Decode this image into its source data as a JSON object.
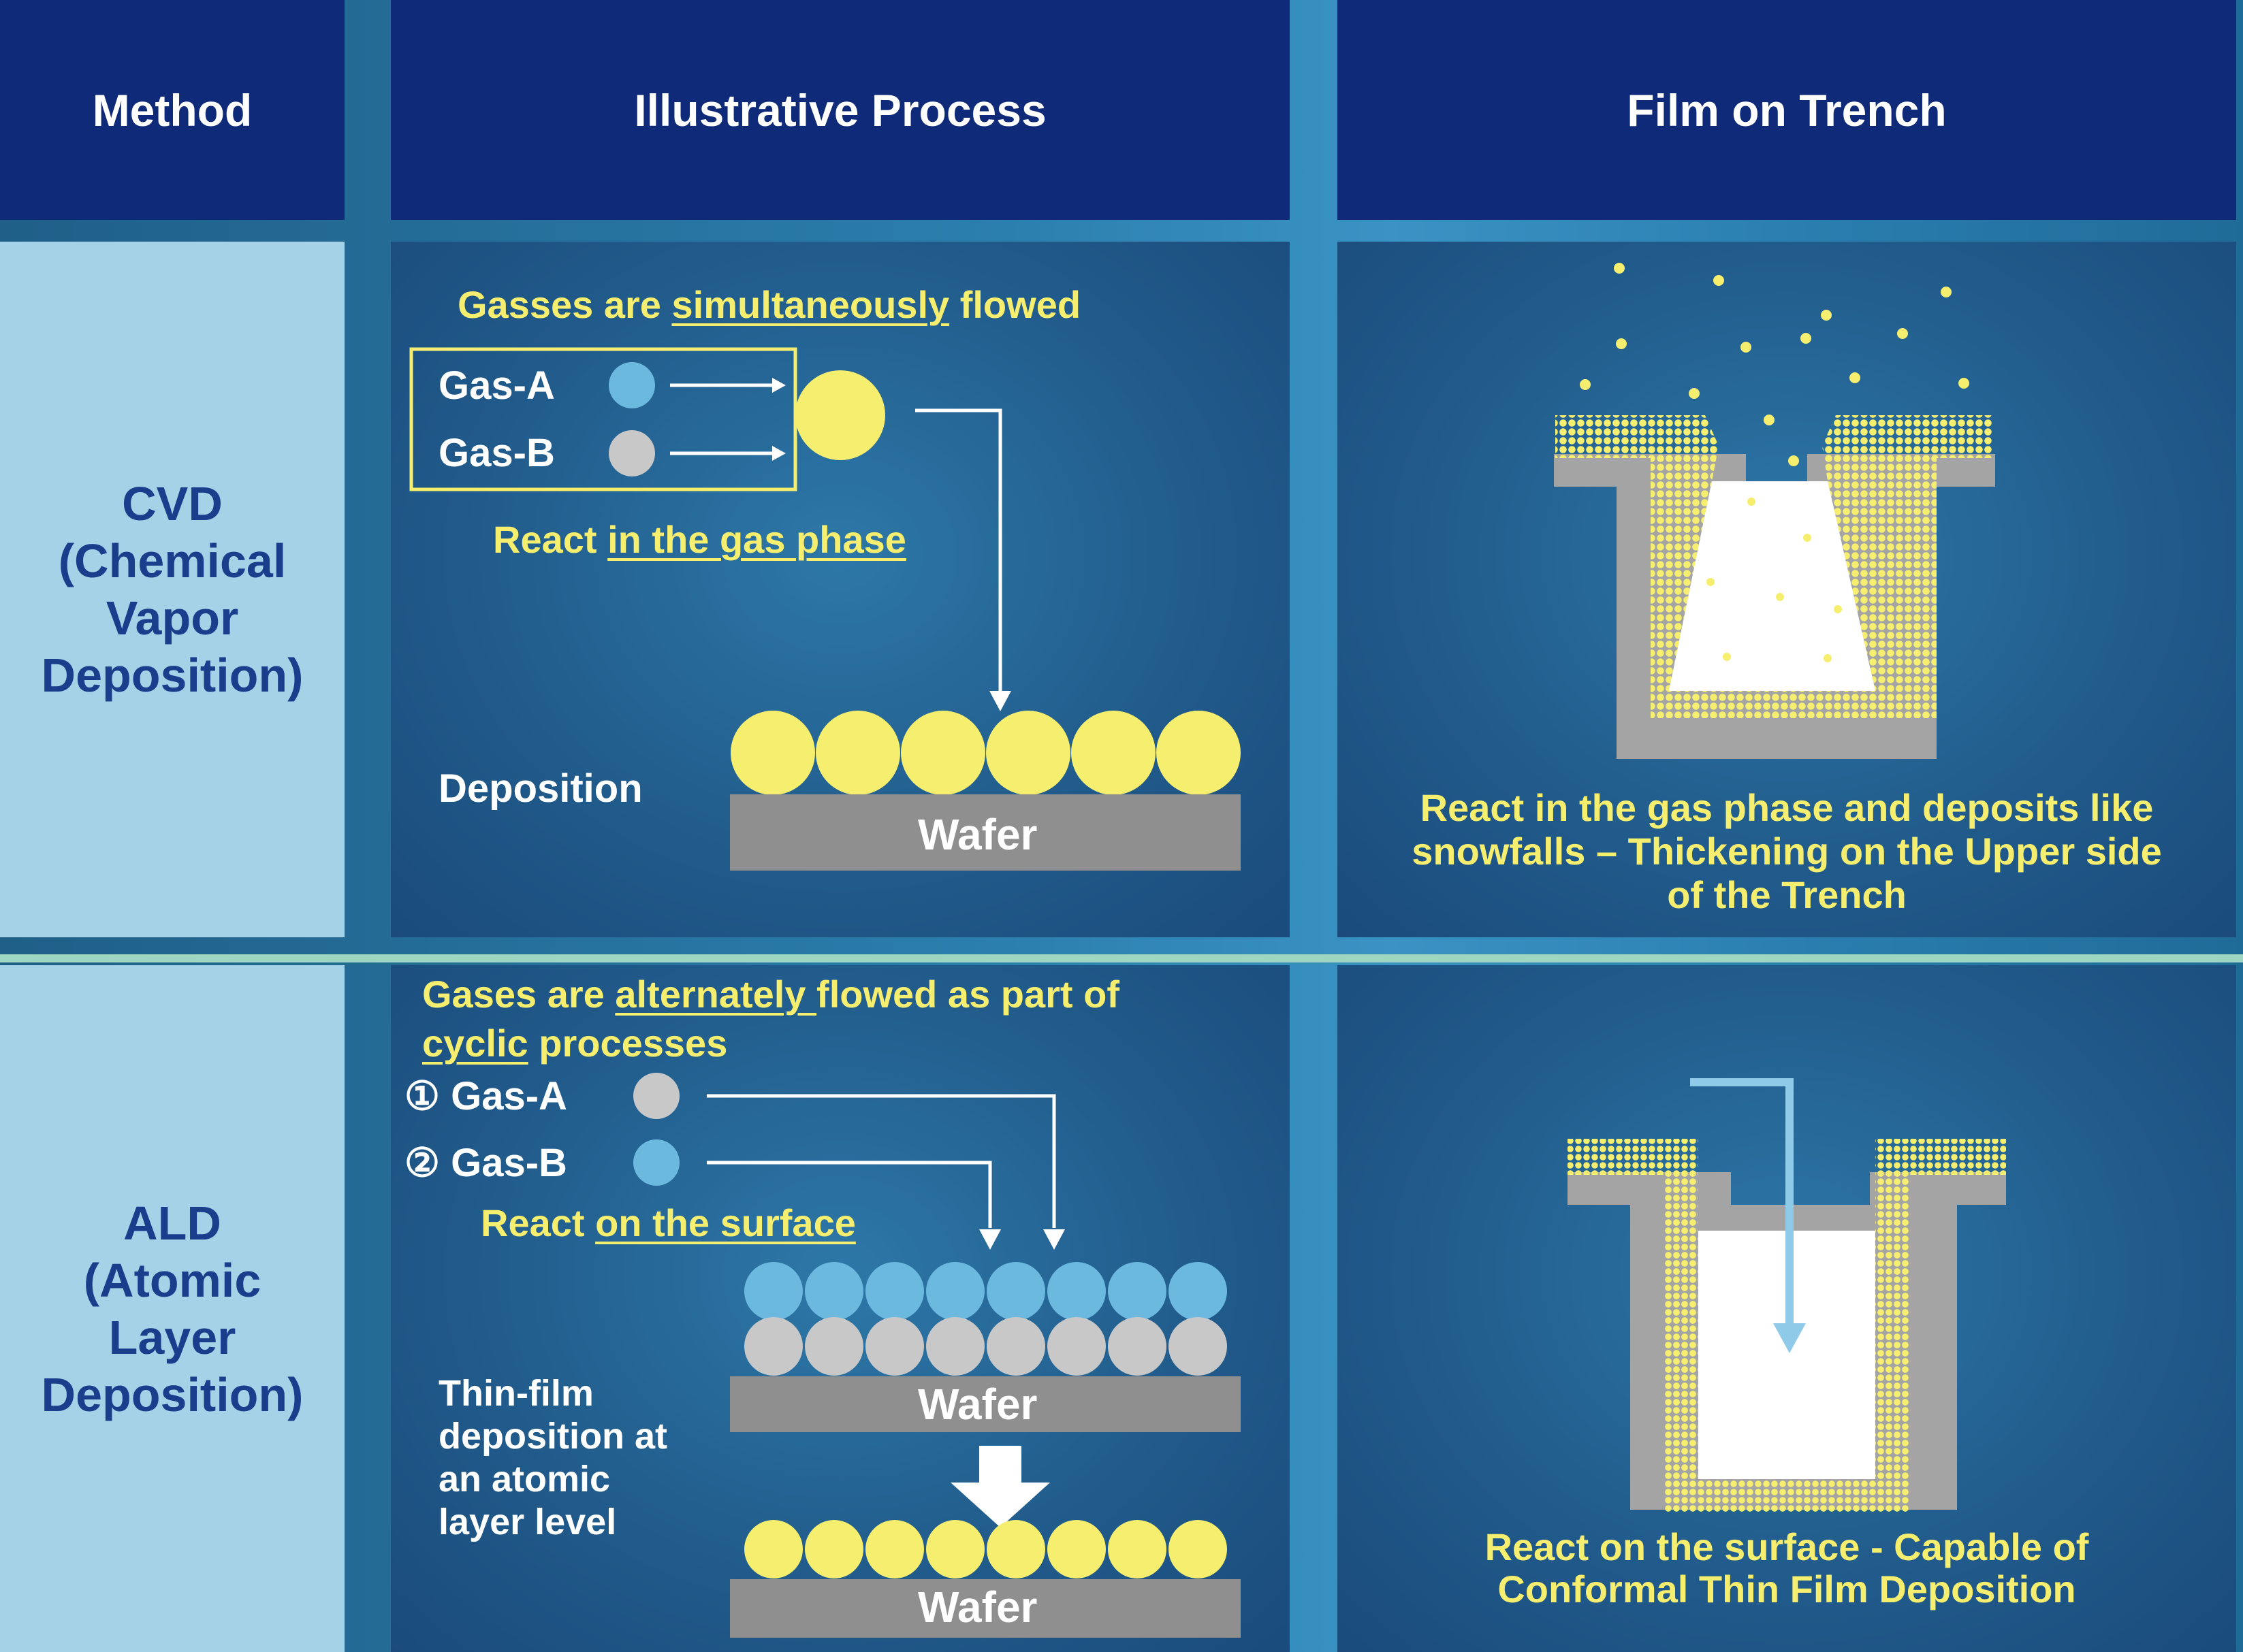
{
  "headers": {
    "method": "Method",
    "process": "Illustrative Process",
    "film": "Film on Trench"
  },
  "cvd": {
    "method_lines": [
      "CVD",
      "(Chemical",
      "Vapor",
      "Deposition)"
    ],
    "flow_pre": "Gasses are ",
    "flow_em": "simultaneously",
    "flow_post": " flowed",
    "gas_a": "Gas-A",
    "gas_b": "Gas-B",
    "react_pre": "React ",
    "react_em": "in the gas phase",
    "deposition": "Deposition",
    "wafer": "Wafer",
    "film_caption_lines": [
      "React in the gas phase and deposits like",
      "snowfalls – Thickening on the Upper side",
      "of the Trench"
    ]
  },
  "ald": {
    "method_lines": [
      "ALD",
      "(Atomic",
      "Layer",
      "Deposition)"
    ],
    "flow_line1_pre": "Gases are ",
    "flow_line1_em": "alternately ",
    "flow_line1_post": "flowed as part of",
    "flow_line2_em": "cyclic",
    "flow_line2_post": " processes",
    "step1": "① Gas-A",
    "step2": "② Gas-B",
    "react_pre": "React ",
    "react_em": "on the surface",
    "thin_film_lines": [
      "Thin-film",
      "deposition at",
      "an atomic",
      "layer level"
    ],
    "wafer_top": "Wafer",
    "wafer_bottom": "Wafer",
    "film_caption_lines": [
      "React on the surface - Capable of",
      "Conformal Thin Film Deposition"
    ]
  },
  "colors": {
    "header_bg": "#0e2a78",
    "method_bg": "#a6d2e8",
    "method_text": "#1a3d8c",
    "highlight_yellow": "#f6ee6e",
    "gas_blue": "#6cb9e0",
    "gas_gray": "#c8c8c8",
    "wafer_gray": "#8f8f8f",
    "divider": "#9fd6c2"
  }
}
